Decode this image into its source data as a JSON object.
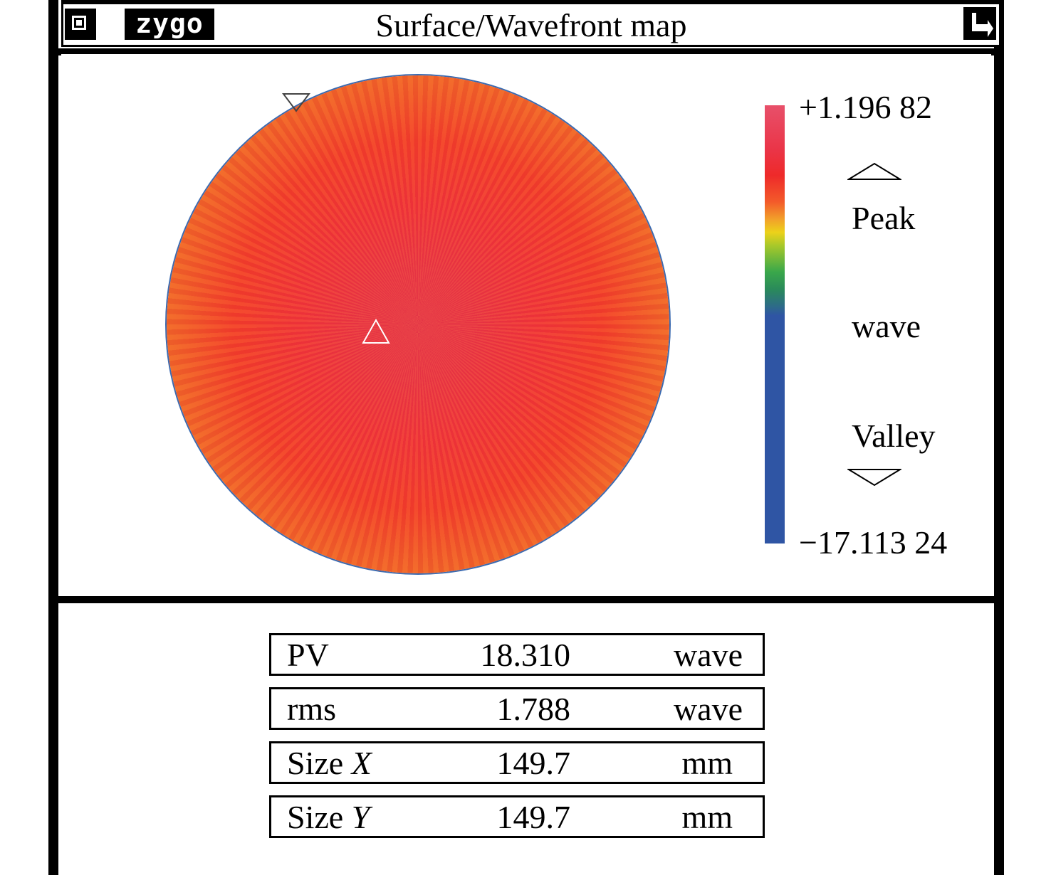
{
  "window": {
    "title": "Surface/Wavefront map",
    "logo": "zygo",
    "icons": {
      "menu": "menu-box-icon",
      "corner": "resize-arrow-icon"
    }
  },
  "map": {
    "scale_max": "+1.196 82",
    "scale_min": "−17.113 24",
    "peak_label": "Peak",
    "unit_label": "wave",
    "valley_label": "Valley",
    "colors": {
      "high": "#e8384a",
      "mid": "#f2762a",
      "low": "#2f55a4"
    }
  },
  "stats": [
    {
      "name": "PV",
      "name_suffix": "",
      "value": "18.310",
      "unit": "wave"
    },
    {
      "name": "rms",
      "name_suffix": "",
      "value": "1.788",
      "unit": "wave"
    },
    {
      "name": "Size ",
      "name_suffix": "X",
      "value": "149.7",
      "unit": "mm"
    },
    {
      "name": "Size ",
      "name_suffix": "Y",
      "value": "149.7",
      "unit": "mm"
    }
  ]
}
